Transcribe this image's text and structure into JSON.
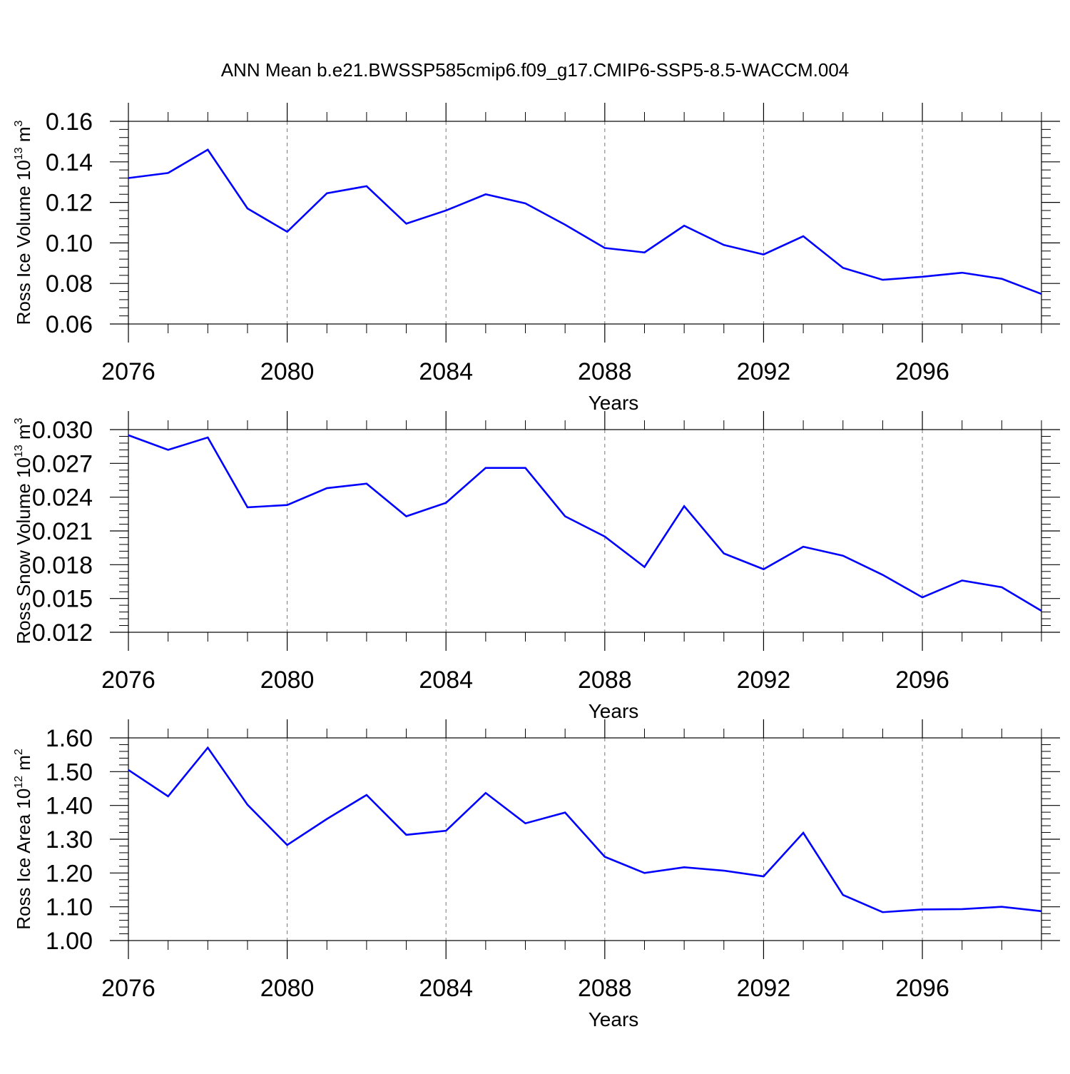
{
  "title": "ANN Mean b.e21.BWSSP585cmip6.f09_g17.CMIP6-SSP5-8.5-WACCM.004",
  "colors": {
    "line": "#0000ff",
    "axis": "#000000",
    "grid": "#777777"
  },
  "chart_data": [
    {
      "type": "line",
      "ylabel": {
        "text": "Ross Ice Volume 10",
        "sup": "13",
        "unit": " m",
        "unit_sup": "3"
      },
      "xlabel": "Years",
      "xlim": [
        2076,
        2099
      ],
      "ylim": [
        0.06,
        0.16
      ],
      "xticks": [
        2076,
        2080,
        2084,
        2088,
        2092,
        2096
      ],
      "xtick_labels": [
        "2076",
        "2080",
        "2084",
        "2088",
        "2092",
        "2096"
      ],
      "yticks": [
        0.06,
        0.08,
        0.1,
        0.12,
        0.14,
        0.16
      ],
      "ytick_labels": [
        "0.06",
        "0.08",
        "0.10",
        "0.12",
        "0.14",
        "0.16"
      ],
      "grid": "vertical-dashed",
      "x": [
        2076,
        2077,
        2078,
        2079,
        2080,
        2081,
        2082,
        2083,
        2084,
        2085,
        2086,
        2087,
        2088,
        2089,
        2090,
        2091,
        2092,
        2093,
        2094,
        2095,
        2096,
        2097,
        2098,
        2099
      ],
      "values": [
        0.132,
        0.1345,
        0.146,
        0.117,
        0.1055,
        0.1245,
        0.128,
        0.1095,
        0.116,
        0.124,
        0.1195,
        0.109,
        0.0975,
        0.0953,
        0.1085,
        0.099,
        0.0943,
        0.1033,
        0.0877,
        0.0818,
        0.0833,
        0.0853,
        0.0823,
        0.0748
      ]
    },
    {
      "type": "line",
      "ylabel": {
        "text": "Ross Snow Volume 10",
        "sup": "13",
        "unit": " m",
        "unit_sup": "3"
      },
      "xlabel": "Years",
      "xlim": [
        2076,
        2099
      ],
      "ylim": [
        0.012,
        0.03
      ],
      "xticks": [
        2076,
        2080,
        2084,
        2088,
        2092,
        2096
      ],
      "xtick_labels": [
        "2076",
        "2080",
        "2084",
        "2088",
        "2092",
        "2096"
      ],
      "yticks": [
        0.012,
        0.015,
        0.018,
        0.021,
        0.024,
        0.027,
        0.03
      ],
      "ytick_labels": [
        "0.012",
        "0.015",
        "0.018",
        "0.021",
        "0.024",
        "0.027",
        "0.030"
      ],
      "grid": "vertical-dashed",
      "x": [
        2076,
        2077,
        2078,
        2079,
        2080,
        2081,
        2082,
        2083,
        2084,
        2085,
        2086,
        2087,
        2088,
        2089,
        2090,
        2091,
        2092,
        2093,
        2094,
        2095,
        2096,
        2097,
        2098,
        2099
      ],
      "values": [
        0.0295,
        0.0282,
        0.0293,
        0.0231,
        0.0233,
        0.0248,
        0.0252,
        0.0223,
        0.0235,
        0.0266,
        0.0266,
        0.0223,
        0.0205,
        0.0178,
        0.0232,
        0.019,
        0.0176,
        0.0196,
        0.0188,
        0.0171,
        0.0151,
        0.0166,
        0.016,
        0.0139
      ]
    },
    {
      "type": "line",
      "ylabel": {
        "text": "Ross Ice Area 10",
        "sup": "12",
        "unit": " m",
        "unit_sup": "2"
      },
      "xlabel": "Years",
      "xlim": [
        2076,
        2099
      ],
      "ylim": [
        1.0,
        1.6
      ],
      "xticks": [
        2076,
        2080,
        2084,
        2088,
        2092,
        2096
      ],
      "xtick_labels": [
        "2076",
        "2080",
        "2084",
        "2088",
        "2092",
        "2096"
      ],
      "yticks": [
        1.0,
        1.1,
        1.2,
        1.3,
        1.4,
        1.5,
        1.6
      ],
      "ytick_labels": [
        "1.00",
        "1.10",
        "1.20",
        "1.30",
        "1.40",
        "1.50",
        "1.60"
      ],
      "grid": "vertical-dashed",
      "x": [
        2076,
        2077,
        2078,
        2079,
        2080,
        2081,
        2082,
        2083,
        2084,
        2085,
        2086,
        2087,
        2088,
        2089,
        2090,
        2091,
        2092,
        2093,
        2094,
        2095,
        2096,
        2097,
        2098,
        2099
      ],
      "values": [
        1.505,
        1.427,
        1.571,
        1.402,
        1.283,
        1.36,
        1.431,
        1.313,
        1.325,
        1.437,
        1.347,
        1.379,
        1.248,
        1.2,
        1.217,
        1.207,
        1.19,
        1.319,
        1.135,
        1.084,
        1.092,
        1.093,
        1.1,
        1.087
      ]
    }
  ]
}
